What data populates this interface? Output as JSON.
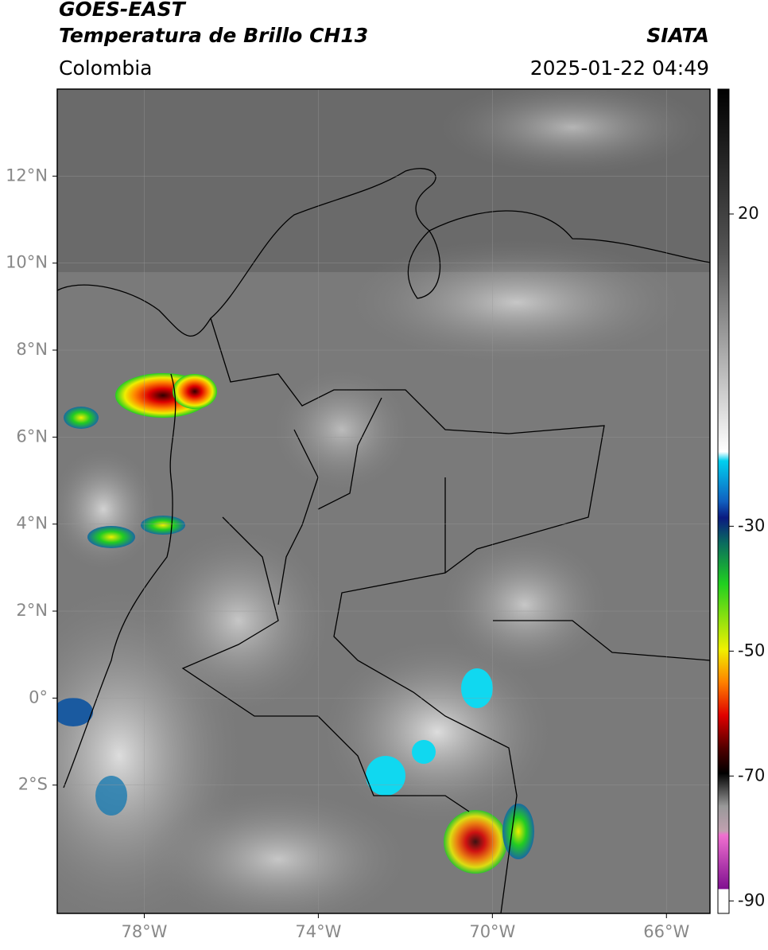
{
  "header": {
    "title_line1": "GOES-EAST",
    "title_line2": "Temperatura de Brillo CH13",
    "source": "SIATA",
    "region": "Colombia",
    "datetime": "2025-01-22 04:49"
  },
  "map": {
    "xlim": [
      -80,
      -65
    ],
    "ylim": [
      -4.95,
      14
    ],
    "yticks": [
      {
        "value": 12,
        "label": "12°N"
      },
      {
        "value": 10,
        "label": "10°N"
      },
      {
        "value": 8,
        "label": "8°N"
      },
      {
        "value": 6,
        "label": "6°N"
      },
      {
        "value": 4,
        "label": "4°N"
      },
      {
        "value": 2,
        "label": "2°N"
      },
      {
        "value": 0,
        "label": "0°"
      },
      {
        "value": -2,
        "label": "2°S"
      }
    ],
    "xticks": [
      {
        "value": -78,
        "label": "78°W"
      },
      {
        "value": -74,
        "label": "74°W"
      },
      {
        "value": -70,
        "label": "70°W"
      },
      {
        "value": -66,
        "label": "66°W"
      }
    ]
  },
  "colorbar": {
    "lim": [
      -92,
      40
    ],
    "ticks": [
      20,
      -30,
      -50,
      -70,
      -90
    ]
  }
}
